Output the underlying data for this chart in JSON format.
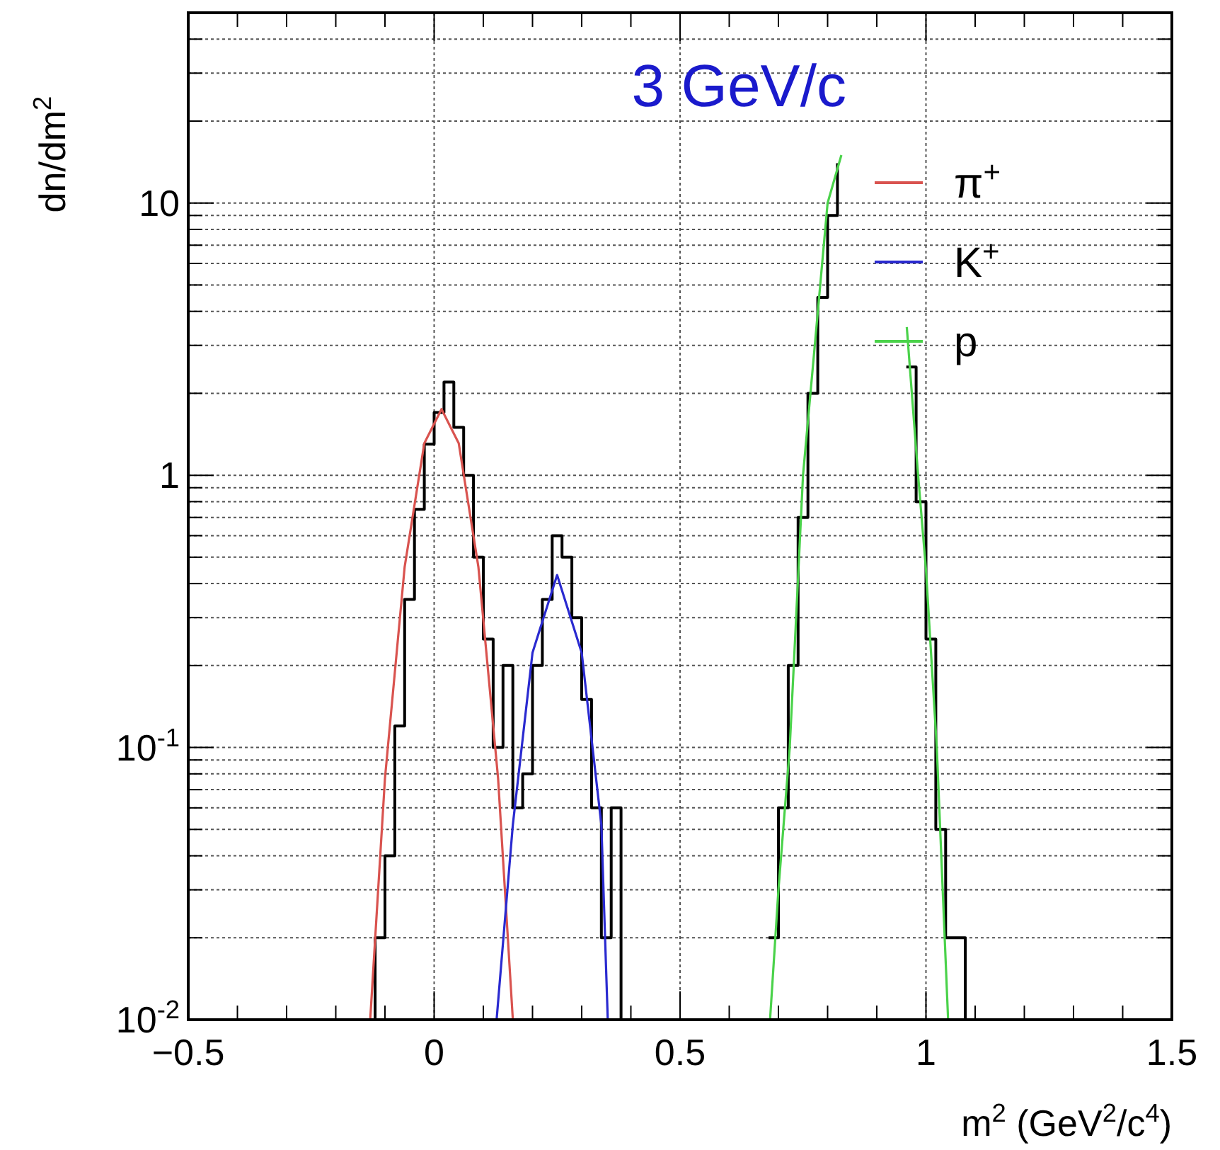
{
  "chart_data": {
    "type": "line",
    "xlabel": "m$^{2}$ (GeV$^{2}$/c$^{4}$)",
    "ylabel": "dn/dm$^{2}$",
    "annotations": [
      "3 GeV/c"
    ],
    "log": "y",
    "grid": true,
    "legend": "top right",
    "xlim": [
      -0.5,
      1.5
    ],
    "xticks": [
      {
        "value": -0.5,
        "label": "−0.5"
      },
      {
        "value": -0.4,
        "label": null
      },
      {
        "value": -0.3,
        "label": null
      },
      {
        "value": -0.2,
        "label": null
      },
      {
        "value": -0.1,
        "label": null
      },
      0,
      {
        "value": 0.1,
        "label": null
      },
      {
        "value": 0.2,
        "label": null
      },
      {
        "value": 0.3,
        "label": null
      },
      {
        "value": 0.4,
        "label": null
      },
      0.5,
      {
        "value": 0.6,
        "label": null
      },
      {
        "value": 0.7,
        "label": null
      },
      {
        "value": 0.8,
        "label": null
      },
      {
        "value": 0.9,
        "label": null
      },
      1,
      {
        "value": 1.1,
        "label": null
      },
      {
        "value": 1.2,
        "label": null
      },
      {
        "value": 1.3,
        "label": null
      },
      {
        "value": 1.4,
        "label": null
      },
      1.5
    ],
    "ylim": [
      0.01,
      50
    ],
    "yticks": [
      {
        "value": 0.01,
        "label": "10$^{-2}$"
      },
      {
        "value": 0.02,
        "label": null
      },
      {
        "value": 0.03,
        "label": null
      },
      {
        "value": 0.04,
        "label": null
      },
      {
        "value": 0.05,
        "label": null
      },
      {
        "value": 0.06,
        "label": null
      },
      {
        "value": 0.07,
        "label": null
      },
      {
        "value": 0.08,
        "label": null
      },
      {
        "value": 0.09,
        "label": null
      },
      {
        "value": 0.1,
        "label": "10$^{-1}$"
      },
      {
        "value": 0.2,
        "label": null
      },
      {
        "value": 0.3,
        "label": null
      },
      {
        "value": 0.4,
        "label": null
      },
      {
        "value": 0.5,
        "label": null
      },
      {
        "value": 0.6,
        "label": null
      },
      {
        "value": 0.7,
        "label": null
      },
      {
        "value": 0.8,
        "label": null
      },
      {
        "value": 0.9,
        "label": null
      },
      1,
      {
        "value": 2,
        "label": null
      },
      {
        "value": 3,
        "label": null
      },
      {
        "value": 4,
        "label": null
      },
      {
        "value": 5,
        "label": null
      },
      {
        "value": 6,
        "label": null
      },
      {
        "value": 7,
        "label": null
      },
      {
        "value": 8,
        "label": null
      },
      {
        "value": 9,
        "label": null
      },
      10,
      {
        "value": 20,
        "label": null
      },
      {
        "value": 30,
        "label": null
      },
      {
        "value": 40,
        "label": null
      }
    ],
    "series": [
      {
        "type": "step",
        "color": "#000000",
        "x": [
          -0.14,
          -0.12,
          -0.1,
          -0.08,
          -0.06,
          -0.04,
          -0.02,
          0,
          0.02,
          0.04,
          0.06,
          0.08,
          0.1,
          0.12,
          0.14,
          0.16,
          0.18,
          0.2,
          0.22,
          0.24,
          0.26,
          0.28,
          0.3,
          0.32,
          0.34,
          0.36,
          0.38,
          0.5,
          0.68,
          0.7,
          0.72,
          0.74,
          0.76,
          0.78,
          0.8,
          0.82,
          0.84,
          0.96,
          0.98,
          1.0,
          1.02,
          1.04,
          1.06,
          1.08
        ],
        "values": [
          0.01,
          0.02,
          0.04,
          0.12,
          0.35,
          0.75,
          1.3,
          1.7,
          2.2,
          1.5,
          1.0,
          0.5,
          0.25,
          0.1,
          0.2,
          0.06,
          0.08,
          0.2,
          0.35,
          0.6,
          0.5,
          0.3,
          0.15,
          0.06,
          0.02,
          0.06,
          0.01,
          null,
          0.02,
          0.06,
          0.2,
          0.7,
          2,
          4.5,
          9,
          14,
          null,
          2.5,
          0.8,
          0.25,
          0.05,
          0.02,
          0.02,
          0.01
        ]
      },
      {
        "name": "π$^{+}$",
        "color": "#d9534f",
        "x": [
          -0.13,
          -0.1,
          -0.06,
          -0.02,
          0.015,
          0.05,
          0.09,
          0.13,
          0.16
        ],
        "values": [
          0.01,
          0.077,
          0.46,
          1.31,
          1.75,
          1.31,
          0.46,
          0.077,
          0.01
        ]
      },
      {
        "name": "K$^{+}$",
        "color": "#2a2ad0",
        "x": [
          0.127,
          0.16,
          0.2,
          0.25,
          0.3,
          0.34,
          0.353
        ],
        "values": [
          0.01,
          0.052,
          0.223,
          0.43,
          0.223,
          0.052,
          0.01
        ]
      },
      {
        "name": "p",
        "color": "#4ad24a",
        "x": [
          0.683,
          0.7,
          0.723,
          0.736,
          0.75,
          0.77,
          0.785,
          0.8,
          0.828,
          0.86,
          0.94,
          0.961,
          0.984,
          1.0,
          1.022,
          1.045
        ],
        "values": [
          0.01,
          0.03,
          0.1,
          0.3,
          1,
          2.5,
          5,
          10,
          15,
          null,
          null,
          3.5,
          1,
          0.45,
          0.1,
          0.01
        ]
      }
    ]
  }
}
